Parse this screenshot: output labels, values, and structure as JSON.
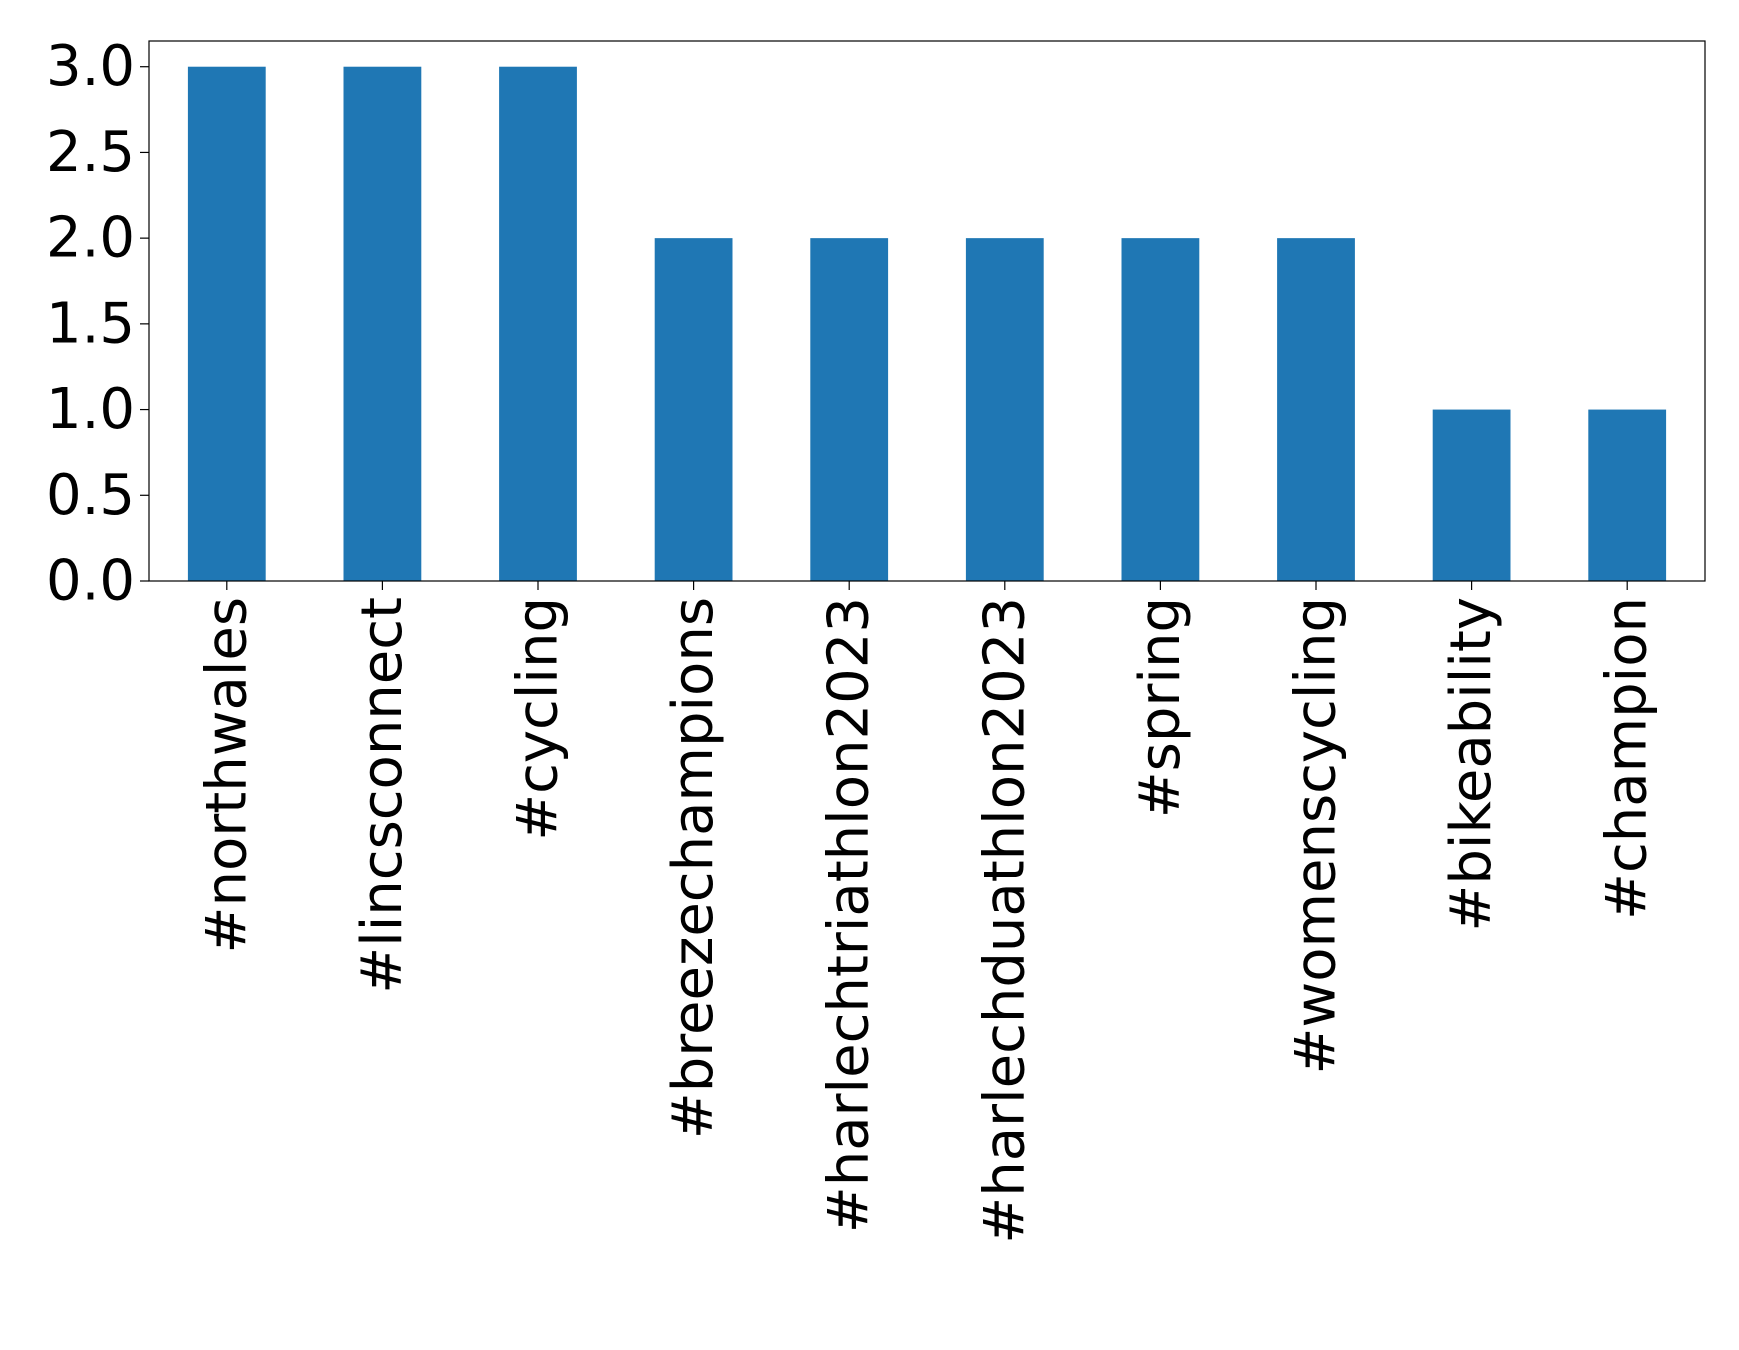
{
  "chart_data": {
    "type": "bar",
    "title": "",
    "xlabel": "",
    "ylabel": "",
    "categories": [
      "#northwales",
      "#lincsconnect",
      "#cycling",
      "#breezechampions",
      "#harlechtriathlon2023",
      "#harlechduathlon2023",
      "#spring",
      "#womenscycling",
      "#bikeability",
      "#champion"
    ],
    "values": [
      3,
      3,
      3,
      2,
      2,
      2,
      2,
      2,
      1,
      1
    ],
    "ylim": [
      0,
      3.15
    ],
    "yticks": [
      "0.0",
      "0.5",
      "1.0",
      "1.5",
      "2.0",
      "2.5",
      "3.0"
    ],
    "grid": false,
    "legend": "none",
    "bar_color": "#1f77b4"
  }
}
